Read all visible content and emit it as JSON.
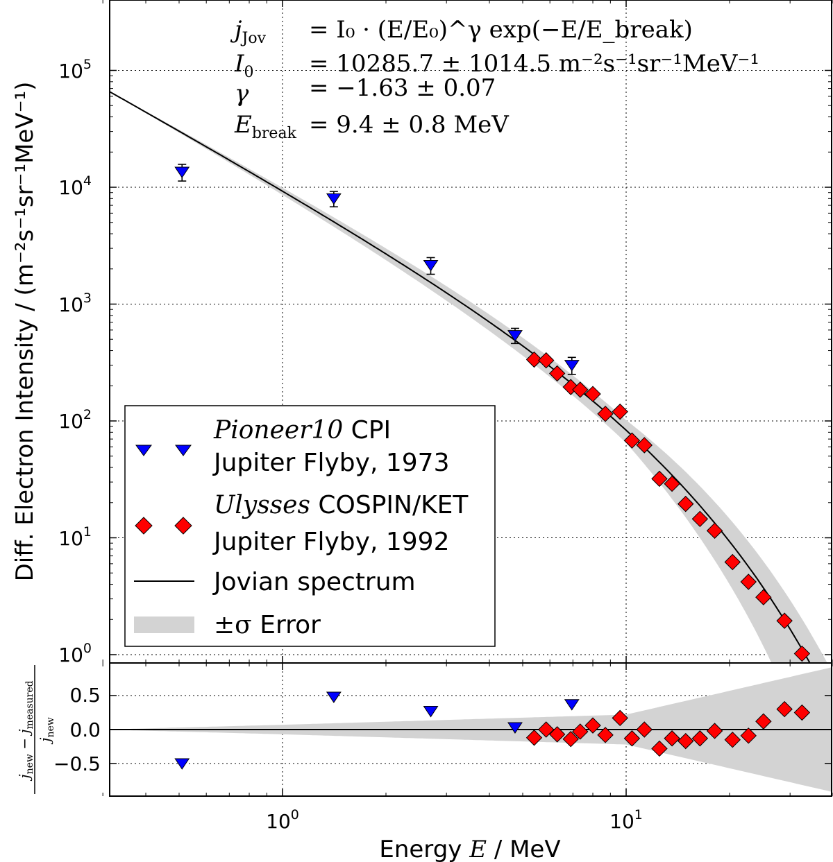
{
  "chart_data": [
    {
      "type": "scatter",
      "panel": "main",
      "xscale": "log",
      "yscale": "log",
      "xlim": [
        0.3,
        40
      ],
      "ylim": [
        0.8,
        500000
      ],
      "xlabel": {
        "prefix": "Energy ",
        "var": "E",
        "suffix": " / MeV"
      },
      "ylabel": "Diff. Electron Intensity / (m⁻²s⁻¹sr⁻¹MeV⁻¹)",
      "grid": true,
      "xticks": [
        {
          "base": "10",
          "exp": "0"
        },
        {
          "base": "10",
          "exp": "1"
        }
      ],
      "yticks": [
        {
          "base": "10",
          "exp": "0"
        },
        {
          "base": "10",
          "exp": "1"
        },
        {
          "base": "10",
          "exp": "2"
        },
        {
          "base": "10",
          "exp": "3"
        },
        {
          "base": "10",
          "exp": "4"
        },
        {
          "base": "10",
          "exp": "5"
        }
      ],
      "annotation": [
        {
          "lhs": "j",
          "lhs_sub": "Jov",
          "rhs": "= I₀ · (E/E₀)^γ exp(−E/E_break)"
        },
        {
          "lhs": "I",
          "lhs_sub": "0",
          "rhs": "= 10285.7 ± 1014.5 m⁻²s⁻¹sr⁻¹MeV⁻¹"
        },
        {
          "lhs": "γ",
          "lhs_sub": "",
          "rhs": "= −1.63 ± 0.07"
        },
        {
          "lhs": "E",
          "lhs_sub": "break",
          "rhs": "= 9.4 ± 0.8 MeV"
        }
      ],
      "fit": {
        "I0": 10285.7,
        "gamma": -1.63,
        "E_break": 9.4,
        "E0": 1
      },
      "series": [
        {
          "name": "Pioneer10 CPI Jupiter Flyby, 1973",
          "marker": "triangle-down",
          "color": "#0000ff",
          "x": [
            0.51,
            1.41,
            2.7,
            4.75,
            6.95
          ],
          "y": [
            13500,
            8000,
            2150,
            540,
            300
          ],
          "err": [
            2200,
            1200,
            350,
            80,
            50
          ]
        },
        {
          "name": "Ulysses COSPIN/KET Jupiter Flyby, 1992",
          "marker": "diamond",
          "color": "#ff0000",
          "x": [
            5.4,
            5.85,
            6.3,
            6.9,
            7.35,
            8.0,
            8.7,
            9.6,
            10.4,
            11.3,
            12.5,
            13.6,
            14.9,
            16.4,
            18.1,
            20.4,
            22.7,
            25.1,
            28.9,
            32.5
          ],
          "y": [
            335,
            330,
            255,
            195,
            185,
            170,
            115,
            120,
            68,
            62,
            32,
            29,
            19.5,
            14.5,
            11.5,
            6.2,
            4.2,
            3.1,
            1.95,
            1.02
          ]
        },
        {
          "name": "Jovian spectrum",
          "type": "line",
          "color": "#000000"
        },
        {
          "name": "±σ Error",
          "type": "band",
          "color": "#d3d3d3"
        }
      ],
      "legend": {
        "placement": "lower-left",
        "entries": [
          {
            "italic": "Pioneer10",
            "rest": " CPI",
            "line2": "Jupiter Flyby, 1973"
          },
          {
            "italic": "Ulysses",
            "rest": " COSPIN/KET",
            "line2": "Jupiter Flyby, 1992"
          },
          {
            "label": "Jovian spectrum"
          },
          {
            "label_sym": "±σ",
            "label": " Error"
          }
        ]
      }
    },
    {
      "type": "scatter",
      "panel": "residual",
      "xscale": "log",
      "ylim": [
        -0.95,
        0.95
      ],
      "ylabel": {
        "num_a": "j",
        "num_a_sub": "new",
        "num_b": "j",
        "num_b_sub": "measured",
        "den": "j",
        "den_sub": "new"
      },
      "yticks": [
        "−0.5",
        "0.0",
        "0.5"
      ],
      "ytick_values": [
        -0.5,
        0,
        0.5
      ],
      "band_half_width_at": {
        "x": [
          0.3,
          1,
          10,
          40
        ],
        "y": [
          0.0,
          0.07,
          0.22,
          0.92
        ]
      },
      "series": [
        {
          "name": "Pioneer10 CPI residual",
          "marker": "triangle-down",
          "color": "#0000ff",
          "x": [
            0.51,
            1.41,
            2.7,
            4.75,
            6.95
          ],
          "y": [
            -0.5,
            0.48,
            0.27,
            0.03,
            0.37
          ]
        },
        {
          "name": "Ulysses COSPIN/KET residual",
          "marker": "diamond",
          "color": "#ff0000",
          "x": [
            5.4,
            5.85,
            6.3,
            6.9,
            7.35,
            8.0,
            8.7,
            9.6,
            10.4,
            11.3,
            12.5,
            13.6,
            14.9,
            16.4,
            18.1,
            20.4,
            22.7,
            25.1,
            28.9,
            32.5
          ],
          "y": [
            -0.12,
            0.0,
            -0.07,
            -0.14,
            -0.03,
            0.06,
            -0.08,
            0.17,
            -0.13,
            0.0,
            -0.28,
            -0.13,
            -0.17,
            -0.13,
            -0.02,
            -0.15,
            -0.09,
            0.12,
            0.3,
            0.25
          ]
        }
      ]
    }
  ]
}
